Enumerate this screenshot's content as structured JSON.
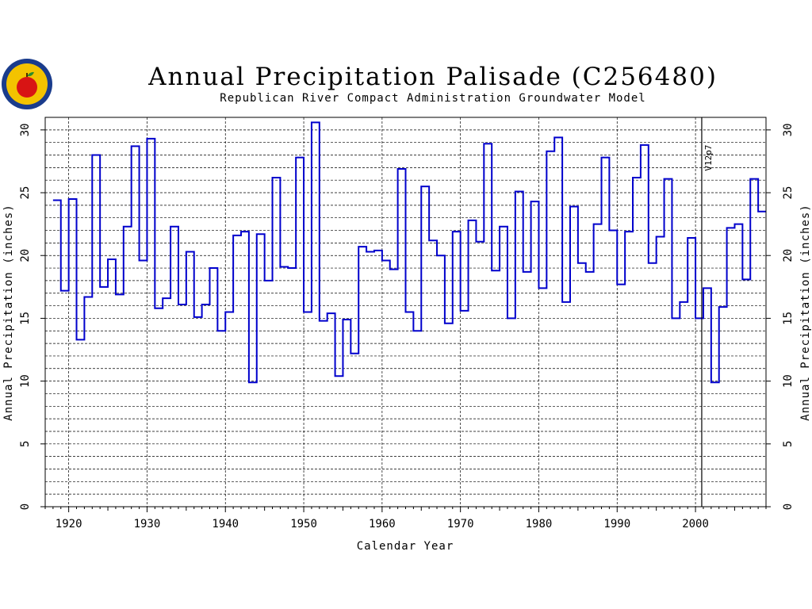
{
  "logo": {
    "name": "agency-seal"
  },
  "chart_data": {
    "type": "line",
    "step": true,
    "title": "Annual Precipitation Palisade (C256480)",
    "subtitle": "Republican River Compact Administration Groundwater Model",
    "xlabel": "Calendar Year",
    "ylabel": "Annual Precipitation (inches)",
    "ylabel_right": "Annual Precipitation (inches)",
    "xlim": [
      1917,
      2009
    ],
    "ylim": [
      0,
      31
    ],
    "xticks": [
      1920,
      1930,
      1940,
      1950,
      1960,
      1970,
      1980,
      1990,
      2000
    ],
    "yticks": [
      0,
      5,
      10,
      15,
      20,
      25,
      30
    ],
    "grid": true,
    "annotation": {
      "text": "V12p7",
      "x": 2001
    },
    "series_color": "#0000cc",
    "series": [
      {
        "x": [
          1918,
          1919,
          1920,
          1921,
          1922,
          1923,
          1924,
          1925,
          1926,
          1927,
          1928,
          1929,
          1930,
          1931,
          1932,
          1933,
          1934,
          1935,
          1936,
          1937,
          1938,
          1939,
          1940,
          1941,
          1942,
          1943,
          1944,
          1945,
          1946,
          1947,
          1948,
          1949,
          1950,
          1951,
          1952,
          1953,
          1954,
          1955,
          1956,
          1957,
          1958,
          1959,
          1960,
          1961,
          1962,
          1963,
          1964,
          1965,
          1966,
          1967,
          1968,
          1969,
          1970,
          1971,
          1972,
          1973,
          1974,
          1975,
          1976,
          1977,
          1978,
          1979,
          1980,
          1981,
          1982,
          1983,
          1984,
          1985,
          1986,
          1987,
          1988,
          1989,
          1990,
          1991,
          1992,
          1993,
          1994,
          1995,
          1996,
          1997,
          1998,
          1999,
          2000,
          2001,
          2002,
          2003,
          2004,
          2005,
          2006,
          2007,
          2008
        ],
        "values": [
          24.4,
          17.2,
          24.5,
          13.3,
          16.7,
          28.0,
          17.5,
          19.7,
          16.9,
          22.3,
          28.7,
          19.6,
          29.3,
          15.8,
          16.6,
          22.3,
          16.1,
          20.3,
          15.1,
          16.1,
          19.0,
          14.0,
          15.5,
          21.6,
          21.9,
          9.9,
          21.7,
          18.0,
          26.2,
          19.1,
          19.0,
          27.8,
          15.5,
          30.6,
          14.8,
          15.4,
          10.4,
          14.9,
          12.2,
          20.7,
          20.3,
          20.4,
          19.6,
          18.9,
          26.9,
          15.5,
          14.0,
          25.5,
          21.2,
          20.0,
          14.6,
          21.9,
          15.6,
          22.8,
          21.1,
          28.9,
          18.8,
          22.3,
          15.0,
          25.1,
          18.7,
          24.3,
          17.4,
          28.3,
          29.4,
          16.3,
          23.9,
          19.4,
          18.7,
          22.5,
          27.8,
          22.0,
          17.7,
          21.9,
          26.2,
          28.8,
          19.4,
          21.5,
          26.1,
          15.0,
          16.3,
          21.4,
          15.0,
          17.4,
          9.9,
          15.9,
          22.2,
          22.5,
          18.1,
          26.1,
          23.5
        ]
      }
    ]
  }
}
